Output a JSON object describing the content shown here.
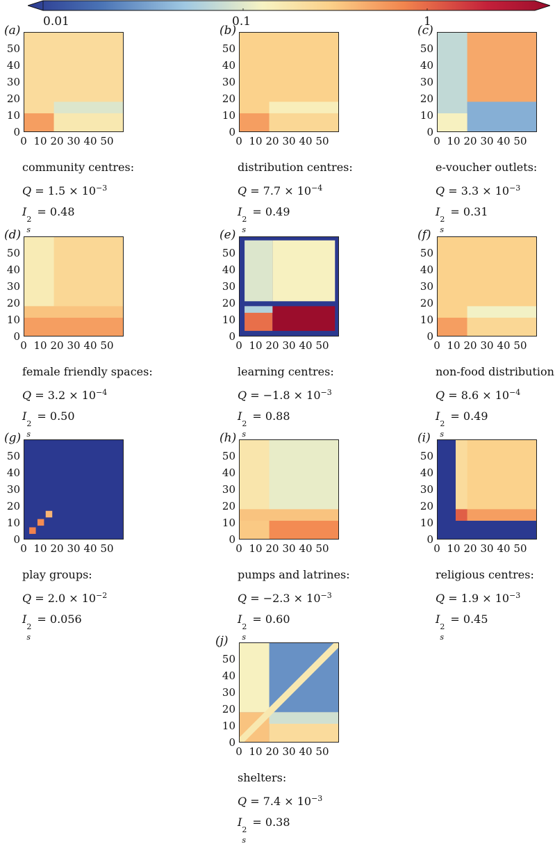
{
  "colorbar": {
    "scale": "log",
    "colors": [
      "#2b3990",
      "#4a73b5",
      "#9fc8e2",
      "#f7f3c3",
      "#fbd089",
      "#f2854e",
      "#c3203a",
      "#9b0d2c"
    ],
    "tick_labels": [
      "0.01",
      "0.1",
      "1"
    ]
  },
  "chart_data": [
    {
      "type": "heatmap",
      "panel": "(a)",
      "name": "community centres:",
      "Q": "Q = 1.5 × 10",
      "Q_exp": "−3",
      "I2": "= 0.48",
      "xticks": [
        "0",
        "10",
        "20",
        "30",
        "40",
        "50"
      ],
      "yticks": [
        "0",
        "10",
        "20",
        "30",
        "40",
        "50"
      ],
      "xlim": [
        0,
        60
      ],
      "ylim": [
        0,
        60
      ],
      "blocks": [
        {
          "x": [
            0,
            60
          ],
          "y": [
            0,
            60
          ],
          "value": 0.2
        },
        {
          "x": [
            18,
            60
          ],
          "y": [
            11,
            18
          ],
          "value": 0.09
        },
        {
          "x": [
            0,
            18
          ],
          "y": [
            0,
            11
          ],
          "value": 0.45
        },
        {
          "x": [
            18,
            60
          ],
          "y": [
            0,
            11
          ],
          "value": 0.15
        }
      ]
    },
    {
      "type": "heatmap",
      "panel": "(b)",
      "name": "distribution centres:",
      "Q": "Q = 7.7 × 10",
      "Q_exp": "−4",
      "I2": "= 0.49",
      "xticks": [
        "0",
        "10",
        "20",
        "30",
        "40",
        "50"
      ],
      "yticks": [
        "0",
        "10",
        "20",
        "30",
        "40",
        "50"
      ],
      "xlim": [
        0,
        60
      ],
      "ylim": [
        0,
        60
      ],
      "blocks": [
        {
          "x": [
            0,
            60
          ],
          "y": [
            0,
            60
          ],
          "value": 0.25
        },
        {
          "x": [
            18,
            60
          ],
          "y": [
            11,
            18
          ],
          "value": 0.13
        },
        {
          "x": [
            0,
            18
          ],
          "y": [
            0,
            11
          ],
          "value": 0.45
        },
        {
          "x": [
            18,
            60
          ],
          "y": [
            0,
            11
          ],
          "value": 0.22
        }
      ]
    },
    {
      "type": "heatmap",
      "panel": "(c)",
      "name": "e-voucher outlets:",
      "Q": "Q = 3.3 × 10",
      "Q_exp": "−3",
      "I2": "= 0.31",
      "xticks": [
        "0",
        "10",
        "20",
        "30",
        "40",
        "50"
      ],
      "yticks": [
        "0",
        "10",
        "20",
        "30",
        "40",
        "50"
      ],
      "xlim": [
        0,
        60
      ],
      "ylim": [
        0,
        60
      ],
      "blocks": [
        {
          "x": [
            0,
            60
          ],
          "y": [
            0,
            60
          ],
          "value": 0.4
        },
        {
          "x": [
            0,
            18
          ],
          "y": [
            0,
            60
          ],
          "value": 0.07
        },
        {
          "x": [
            18,
            60
          ],
          "y": [
            0,
            18
          ],
          "value": 0.04
        },
        {
          "x": [
            0,
            18
          ],
          "y": [
            0,
            11
          ],
          "value": 0.12
        }
      ]
    },
    {
      "type": "heatmap",
      "panel": "(d)",
      "name": "female friendly spaces:",
      "Q": "Q = 3.2 × 10",
      "Q_exp": "−4",
      "I2": "= 0.50",
      "xticks": [
        "0",
        "10",
        "20",
        "30",
        "40",
        "50"
      ],
      "yticks": [
        "0",
        "10",
        "20",
        "30",
        "40",
        "50"
      ],
      "xlim": [
        0,
        60
      ],
      "ylim": [
        0,
        60
      ],
      "blocks": [
        {
          "x": [
            0,
            60
          ],
          "y": [
            0,
            60
          ],
          "value": 0.22
        },
        {
          "x": [
            0,
            18
          ],
          "y": [
            18,
            60
          ],
          "value": 0.14
        },
        {
          "x": [
            0,
            60
          ],
          "y": [
            0,
            18
          ],
          "value": 0.3
        },
        {
          "x": [
            0,
            60
          ],
          "y": [
            0,
            11
          ],
          "value": 0.45
        }
      ]
    },
    {
      "type": "heatmap",
      "panel": "(e)",
      "name": "learning centres:",
      "Q": "Q = −1.8 × 10",
      "Q_exp": "−3",
      "I2": "= 0.88",
      "xticks": [
        "0",
        "10",
        "20",
        "30",
        "40",
        "50"
      ],
      "yticks": [
        "0",
        "10",
        "20",
        "30",
        "40",
        "50"
      ],
      "xlim": [
        0,
        60
      ],
      "ylim": [
        0,
        60
      ],
      "blocks": [
        {
          "x": [
            0,
            60
          ],
          "y": [
            0,
            60
          ],
          "value": 0.01
        },
        {
          "x": [
            3,
            20
          ],
          "y": [
            21,
            58
          ],
          "value": 0.09
        },
        {
          "x": [
            20,
            58
          ],
          "y": [
            21,
            58
          ],
          "value": 0.12
        },
        {
          "x": [
            3,
            20
          ],
          "y": [
            3,
            18
          ],
          "value": 0.7
        },
        {
          "x": [
            20,
            58
          ],
          "y": [
            3,
            18
          ],
          "value": 3.0
        },
        {
          "x": [
            3,
            20
          ],
          "y": [
            14,
            18
          ],
          "value": 0.06
        }
      ]
    },
    {
      "type": "heatmap",
      "panel": "(f)",
      "name": "non-food distribution:",
      "Q": "Q = 8.6 × 10",
      "Q_exp": "−4",
      "I2": "= 0.49",
      "xticks": [
        "0",
        "10",
        "20",
        "30",
        "40",
        "50"
      ],
      "yticks": [
        "0",
        "10",
        "20",
        "30",
        "40",
        "50"
      ],
      "xlim": [
        0,
        60
      ],
      "ylim": [
        0,
        60
      ],
      "blocks": [
        {
          "x": [
            0,
            60
          ],
          "y": [
            0,
            60
          ],
          "value": 0.25
        },
        {
          "x": [
            18,
            60
          ],
          "y": [
            11,
            18
          ],
          "value": 0.11
        },
        {
          "x": [
            0,
            18
          ],
          "y": [
            0,
            11
          ],
          "value": 0.45
        },
        {
          "x": [
            18,
            60
          ],
          "y": [
            0,
            11
          ],
          "value": 0.22
        }
      ]
    },
    {
      "type": "heatmap",
      "panel": "(g)",
      "name": "play groups:",
      "Q": "Q = 2.0 × 10",
      "Q_exp": "−2",
      "I2": "= 0.056",
      "xticks": [
        "0",
        "10",
        "20",
        "30",
        "40",
        "50"
      ],
      "yticks": [
        "0",
        "10",
        "20",
        "30",
        "40",
        "50"
      ],
      "xlim": [
        0,
        60
      ],
      "ylim": [
        0,
        60
      ],
      "blocks": [
        {
          "x": [
            0,
            60
          ],
          "y": [
            0,
            60
          ],
          "value": 0.01
        },
        {
          "x": [
            3,
            7
          ],
          "y": [
            3,
            7
          ],
          "value": 0.6
        },
        {
          "x": [
            8,
            12
          ],
          "y": [
            8,
            12
          ],
          "value": 0.55
        },
        {
          "x": [
            13,
            17
          ],
          "y": [
            13,
            17
          ],
          "value": 0.35
        }
      ]
    },
    {
      "type": "heatmap",
      "panel": "(h)",
      "name": "pumps and latrines:",
      "Q": "Q = −2.3 × 10",
      "Q_exp": "−3",
      "I2": "= 0.60",
      "xticks": [
        "0",
        "10",
        "20",
        "30",
        "40",
        "50"
      ],
      "yticks": [
        "0",
        "10",
        "20",
        "30",
        "40",
        "50"
      ],
      "xlim": [
        0,
        60
      ],
      "ylim": [
        0,
        60
      ],
      "blocks": [
        {
          "x": [
            0,
            60
          ],
          "y": [
            0,
            60
          ],
          "value": 0.1
        },
        {
          "x": [
            0,
            18
          ],
          "y": [
            0,
            60
          ],
          "value": 0.16
        },
        {
          "x": [
            0,
            60
          ],
          "y": [
            11,
            18
          ],
          "value": 0.3
        },
        {
          "x": [
            0,
            18
          ],
          "y": [
            0,
            11
          ],
          "value": 0.28
        },
        {
          "x": [
            18,
            60
          ],
          "y": [
            0,
            11
          ],
          "value": 0.55
        }
      ]
    },
    {
      "type": "heatmap",
      "panel": "(i)",
      "name": "religious centres:",
      "Q": "Q = 1.9 × 10",
      "Q_exp": "−3",
      "I2": "= 0.45",
      "xticks": [
        "0",
        "10",
        "20",
        "30",
        "40",
        "50"
      ],
      "yticks": [
        "0",
        "10",
        "20",
        "30",
        "40",
        "50"
      ],
      "xlim": [
        0,
        60
      ],
      "ylim": [
        0,
        60
      ],
      "blocks": [
        {
          "x": [
            0,
            60
          ],
          "y": [
            0,
            60
          ],
          "value": 0.01
        },
        {
          "x": [
            11,
            60
          ],
          "y": [
            11,
            60
          ],
          "value": 0.25
        },
        {
          "x": [
            11,
            18
          ],
          "y": [
            18,
            60
          ],
          "value": 0.2
        },
        {
          "x": [
            11,
            60
          ],
          "y": [
            11,
            18
          ],
          "value": 0.45
        },
        {
          "x": [
            11,
            18
          ],
          "y": [
            11,
            18
          ],
          "value": 0.8
        }
      ]
    },
    {
      "type": "heatmap",
      "panel": "(j)",
      "name": "shelters:",
      "Q": "Q = 7.4 × 10",
      "Q_exp": "−3",
      "I2": "= 0.38",
      "xticks": [
        "0",
        "10",
        "20",
        "30",
        "40",
        "50"
      ],
      "yticks": [
        "0",
        "10",
        "20",
        "30",
        "40",
        "50"
      ],
      "xlim": [
        0,
        60
      ],
      "ylim": [
        0,
        60
      ],
      "blocks": [
        {
          "x": [
            0,
            60
          ],
          "y": [
            0,
            60
          ],
          "value": 0.03
        },
        {
          "x": [
            0,
            18
          ],
          "y": [
            18,
            60
          ],
          "value": 0.12
        },
        {
          "x": [
            0,
            18
          ],
          "y": [
            0,
            18
          ],
          "value": 0.3
        },
        {
          "x": [
            18,
            60
          ],
          "y": [
            0,
            18
          ],
          "value": 0.2
        },
        {
          "x": [
            18,
            60
          ],
          "y": [
            11,
            18
          ],
          "value": 0.08
        }
      ],
      "diagonal": {
        "value": 0.15
      }
    }
  ]
}
